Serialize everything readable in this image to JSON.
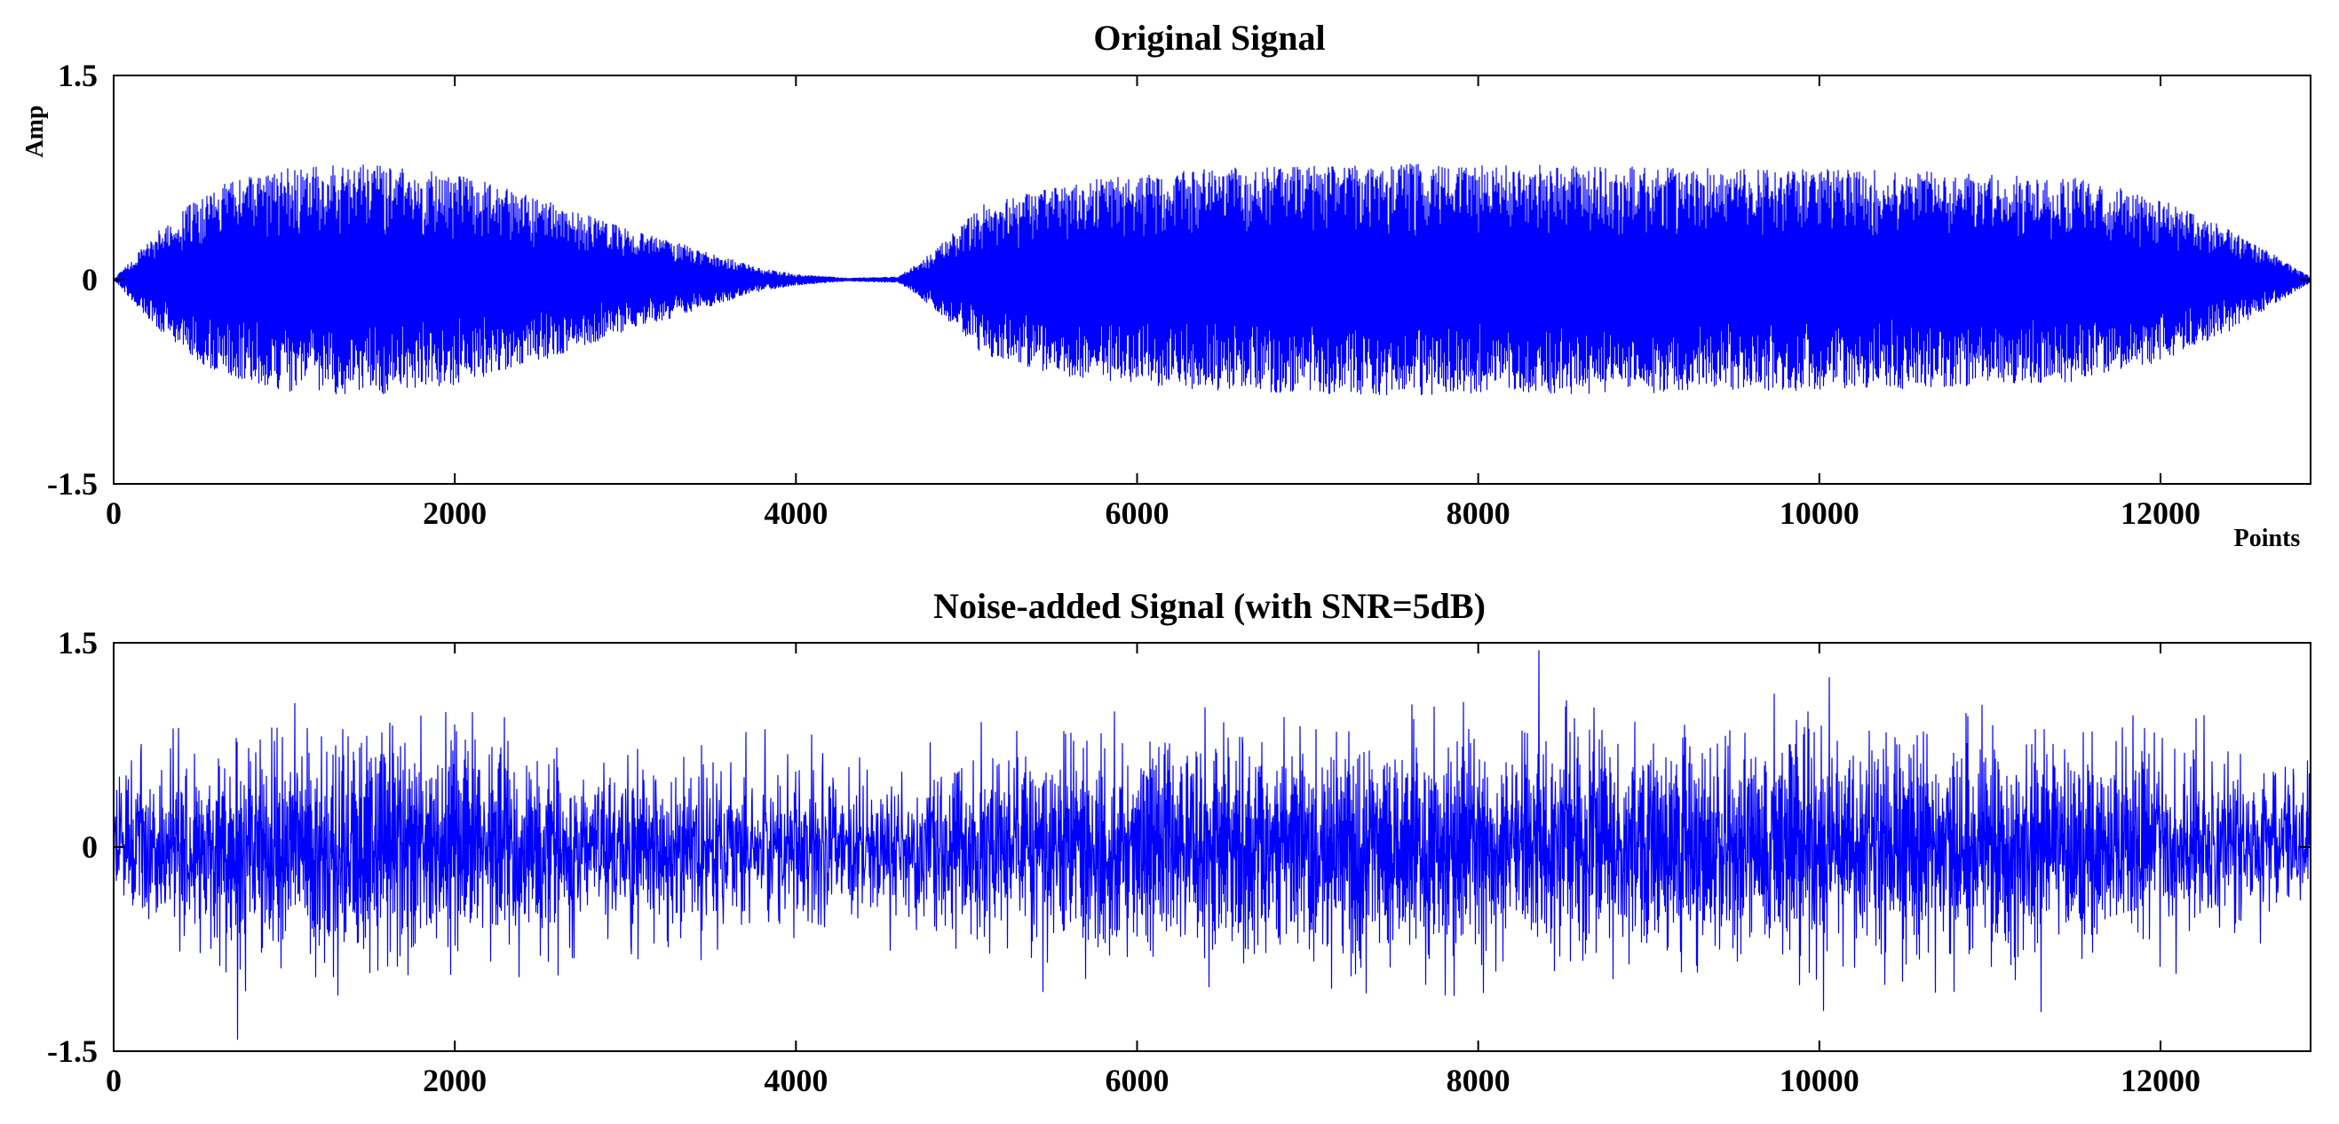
{
  "chart_data": [
    {
      "type": "line",
      "title": "Original Signal",
      "xlabel": "Points",
      "ylabel": "Amp",
      "xlim": [
        0,
        12880
      ],
      "ylim": [
        -1.5,
        1.5
      ],
      "xticks": [
        0,
        2000,
        4000,
        6000,
        8000,
        10000,
        12000
      ],
      "xticklabels": [
        "0",
        "2000",
        "4000",
        "6000",
        "8000",
        "10000",
        "12000"
      ],
      "yticks": [
        -1.5,
        0,
        1.5
      ],
      "yticklabels": [
        "-1.5",
        "0",
        "1.5"
      ],
      "grid": false,
      "color": "#0000ff",
      "n_points": 12880,
      "envelope": {
        "x": [
          0,
          250,
          600,
          1000,
          1500,
          2000,
          2500,
          3000,
          3500,
          3800,
          4000,
          4300,
          4600,
          4800,
          5100,
          5600,
          6500,
          7500,
          8500,
          9500,
          10500,
          11500,
          12000,
          12400,
          12880
        ],
        "amplitude": [
          0.0,
          0.35,
          0.7,
          0.82,
          0.85,
          0.78,
          0.6,
          0.38,
          0.2,
          0.08,
          0.04,
          0.01,
          0.02,
          0.2,
          0.55,
          0.72,
          0.82,
          0.85,
          0.84,
          0.82,
          0.8,
          0.75,
          0.6,
          0.38,
          0.02
        ]
      }
    },
    {
      "type": "line",
      "title": "Noise-added Signal (with SNR=5dB)",
      "xlabel": "",
      "ylabel": "",
      "xlim": [
        0,
        12880
      ],
      "ylim": [
        -1.5,
        1.5
      ],
      "xticks": [
        0,
        2000,
        4000,
        6000,
        8000,
        10000,
        12000
      ],
      "xticklabels": [
        "0",
        "2000",
        "4000",
        "6000",
        "8000",
        "10000",
        "12000"
      ],
      "yticks": [
        -1.5,
        0,
        1.5
      ],
      "yticklabels": [
        "-1.5",
        "0",
        "1.5"
      ],
      "grid": false,
      "color": "#0000ff",
      "n_points": 12880,
      "snr_db": 5,
      "envelope": {
        "x": [
          0,
          250,
          600,
          1000,
          1500,
          2000,
          2500,
          3000,
          3500,
          3800,
          4000,
          4300,
          4600,
          4800,
          5100,
          5600,
          6500,
          7500,
          8500,
          9500,
          10500,
          11500,
          12000,
          12400,
          12880
        ],
        "amplitude": [
          0.0,
          0.35,
          0.7,
          0.82,
          0.85,
          0.78,
          0.6,
          0.38,
          0.2,
          0.08,
          0.04,
          0.01,
          0.02,
          0.2,
          0.55,
          0.72,
          0.82,
          0.85,
          0.84,
          0.82,
          0.8,
          0.75,
          0.6,
          0.38,
          0.02
        ]
      }
    }
  ]
}
